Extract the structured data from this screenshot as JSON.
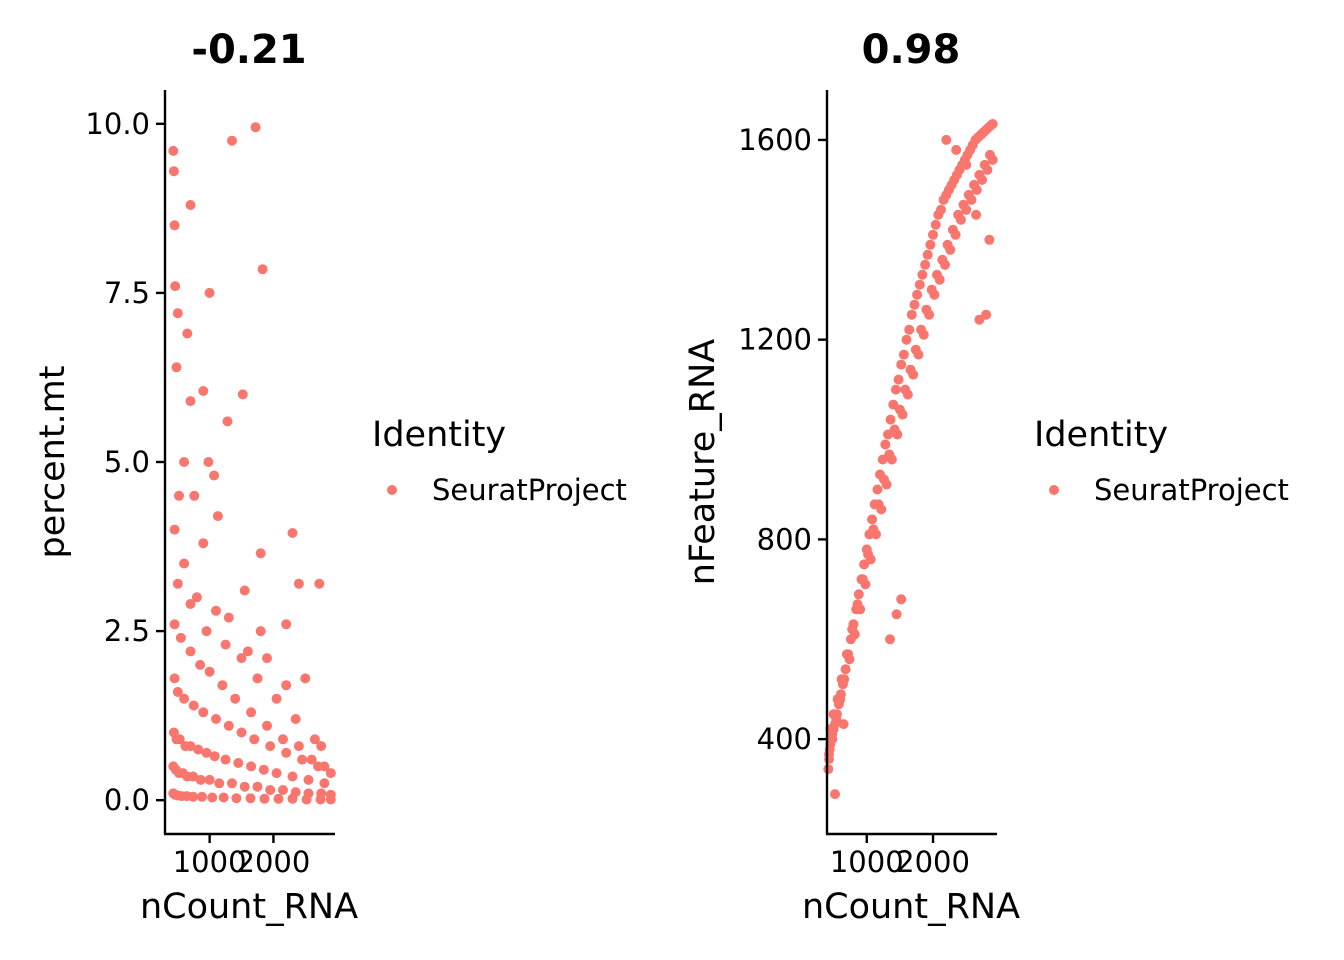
{
  "colors": {
    "point": "#F8766D",
    "axis": "#000000",
    "background": "#FFFFFF"
  },
  "chart_data": [
    {
      "type": "scatter",
      "title": "-0.21",
      "xlabel": "nCount_RNA",
      "ylabel": "percent.mt",
      "xlim": [
        300,
        2950
      ],
      "ylim": [
        -0.5,
        10.5
      ],
      "xticks": [
        1000,
        2000
      ],
      "xtick_labels": [
        "1000",
        "2000"
      ],
      "yticks": [
        0,
        2.5,
        5,
        7.5,
        10
      ],
      "ytick_labels": [
        "0.0",
        "2.5",
        "5.0",
        "7.5",
        "10.0"
      ],
      "grid": false,
      "legend": {
        "title": "Identity",
        "entries": [
          "SeuratProject"
        ],
        "position": "right"
      },
      "series": [
        {
          "name": "SeuratProject",
          "color": "#F8766D",
          "x": [
            430,
            440,
            450,
            460,
            500,
            480,
            700,
            1000,
            1350,
            1720,
            650,
            700,
            900,
            1280,
            1520,
            1830,
            520,
            600,
            760,
            1070,
            980,
            1130,
            2400,
            2720,
            900,
            1550,
            1800,
            2300,
            1800,
            2200,
            2500,
            2750,
            450,
            600,
            800,
            1100,
            1300,
            1600,
            1900,
            2200,
            500,
            700,
            950,
            1250,
            1500,
            1750,
            2050,
            2350,
            2650,
            450,
            550,
            700,
            850,
            1000,
            1200,
            1400,
            1650,
            1900,
            2150,
            2400,
            2600,
            2800,
            450,
            500,
            600,
            750,
            900,
            1100,
            1300,
            1500,
            1700,
            1950,
            2200,
            2450,
            2700,
            2900,
            440,
            480,
            530,
            620,
            700,
            820,
            950,
            1080,
            1250,
            1450,
            1650,
            1850,
            2050,
            2300,
            2550,
            2800,
            430,
            470,
            520,
            580,
            650,
            740,
            860,
            1000,
            1150,
            1350,
            1550,
            1750,
            1950,
            2150,
            2350,
            2550,
            2750,
            2900,
            430,
            460,
            500,
            560,
            640,
            740,
            880,
            1040,
            1220,
            1420,
            1640,
            1860,
            2080,
            2300,
            2520,
            2740,
            2900
          ],
          "y": [
            9.6,
            9.3,
            8.5,
            7.6,
            7.2,
            6.4,
            8.8,
            7.5,
            9.75,
            9.95,
            6.9,
            5.9,
            6.05,
            5.6,
            6.0,
            7.85,
            4.5,
            5.0,
            4.5,
            4.8,
            5.0,
            4.2,
            3.2,
            3.2,
            3.8,
            3.1,
            3.65,
            3.95,
            2.5,
            2.6,
            1.8,
            0.8,
            4.0,
            3.5,
            3.0,
            2.8,
            2.7,
            2.2,
            2.1,
            1.7,
            3.2,
            2.9,
            2.5,
            2.3,
            2.1,
            1.8,
            1.5,
            1.2,
            0.9,
            2.6,
            2.4,
            2.2,
            2.0,
            1.9,
            1.7,
            1.5,
            1.3,
            1.1,
            0.9,
            0.8,
            0.6,
            0.5,
            1.8,
            1.6,
            1.5,
            1.4,
            1.3,
            1.2,
            1.1,
            1.0,
            0.9,
            0.8,
            0.7,
            0.6,
            0.5,
            0.4,
            1.0,
            0.9,
            0.9,
            0.8,
            0.8,
            0.75,
            0.7,
            0.65,
            0.6,
            0.55,
            0.5,
            0.45,
            0.4,
            0.35,
            0.3,
            0.25,
            0.5,
            0.45,
            0.4,
            0.4,
            0.35,
            0.35,
            0.3,
            0.3,
            0.25,
            0.25,
            0.2,
            0.2,
            0.15,
            0.15,
            0.12,
            0.1,
            0.1,
            0.08,
            0.1,
            0.08,
            0.07,
            0.06,
            0.06,
            0.05,
            0.05,
            0.04,
            0.04,
            0.03,
            0.03,
            0.02,
            0.02,
            0.02,
            0.01,
            0.01,
            0.01
          ]
        }
      ]
    },
    {
      "type": "scatter",
      "title": "0.98",
      "xlabel": "nCount_RNA",
      "ylabel": "nFeature_RNA",
      "xlim": [
        400,
        2950
      ],
      "ylim": [
        210,
        1700
      ],
      "xticks": [
        1000,
        2000
      ],
      "xtick_labels": [
        "1000",
        "2000"
      ],
      "yticks": [
        400,
        800,
        1200,
        1600
      ],
      "ytick_labels": [
        "400",
        "800",
        "1200",
        "1600"
      ],
      "grid": false,
      "legend": {
        "title": "Identity",
        "entries": [
          "SeuratProject"
        ],
        "position": "right"
      },
      "series": [
        {
          "name": "SeuratProject",
          "color": "#F8766D",
          "x": [
            420,
            430,
            440,
            450,
            460,
            480,
            500,
            520,
            550,
            580,
            610,
            640,
            680,
            720,
            760,
            800,
            840,
            880,
            920,
            960,
            1000,
            1040,
            1080,
            1120,
            1160,
            1200,
            1240,
            1280,
            1320,
            1360,
            1400,
            1440,
            1480,
            1520,
            1560,
            1600,
            1640,
            1680,
            1720,
            1760,
            1800,
            1840,
            1880,
            1920,
            1960,
            2000,
            2040,
            2080,
            2120,
            2160,
            2200,
            2240,
            2280,
            2320,
            2360,
            2400,
            2440,
            2480,
            2520,
            2560,
            2600,
            2640,
            2680,
            2720,
            2760,
            2800,
            2840,
            2880,
            2900,
            450,
            500,
            560,
            620,
            700,
            780,
            860,
            940,
            1020,
            1100,
            1180,
            1260,
            1340,
            1420,
            1500,
            1580,
            1660,
            1740,
            1820,
            1900,
            1980,
            2060,
            2140,
            2220,
            2300,
            2380,
            2460,
            2540,
            2620,
            2700,
            2780,
            2860,
            430,
            480,
            540,
            600,
            660,
            740,
            820,
            900,
            980,
            1060,
            1140,
            1220,
            1300,
            1380,
            1460,
            1540,
            1620,
            1700,
            1780,
            1860,
            1940,
            2020,
            2100,
            2180,
            2260,
            2340,
            2420,
            2500,
            2580,
            2660,
            2740,
            2820,
            2900,
            520,
            650,
            1350,
            1450,
            1520,
            2200,
            2350,
            2500,
            2650,
            2700,
            2800,
            2850
          ],
          "y": [
            340,
            360,
            380,
            390,
            400,
            410,
            420,
            430,
            450,
            470,
            490,
            510,
            540,
            570,
            600,
            630,
            660,
            690,
            720,
            750,
            780,
            810,
            840,
            870,
            900,
            930,
            960,
            990,
            1010,
            1040,
            1070,
            1100,
            1120,
            1150,
            1170,
            1200,
            1220,
            1250,
            1270,
            1290,
            1310,
            1330,
            1350,
            1370,
            1390,
            1410,
            1430,
            1450,
            1460,
            1480,
            1490,
            1500,
            1510,
            1520,
            1530,
            1540,
            1550,
            1560,
            1570,
            1580,
            1590,
            1600,
            1605,
            1610,
            1615,
            1620,
            1625,
            1630,
            1632,
            420,
            450,
            480,
            520,
            570,
            620,
            670,
            720,
            770,
            820,
            870,
            920,
            970,
            1020,
            1060,
            1100,
            1140,
            1180,
            1220,
            1260,
            1300,
            1330,
            1360,
            1390,
            1420,
            1450,
            1470,
            1490,
            1510,
            1530,
            1550,
            1570,
            370,
            400,
            440,
            480,
            520,
            560,
            610,
            660,
            710,
            760,
            810,
            860,
            910,
            960,
            1010,
            1050,
            1090,
            1130,
            1170,
            1210,
            1250,
            1290,
            1320,
            1350,
            1380,
            1410,
            1440,
            1460,
            1480,
            1500,
            1520,
            1540,
            1560,
            290,
            430,
            600,
            650,
            680,
            1600,
            1580,
            1550,
            1450,
            1240,
            1250,
            1400
          ]
        }
      ]
    }
  ]
}
